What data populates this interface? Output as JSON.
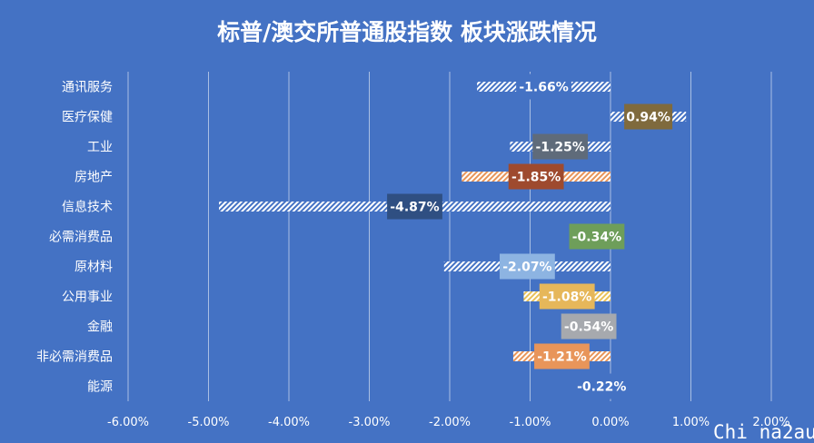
{
  "chart_data": {
    "type": "bar",
    "orientation": "horizontal",
    "title": "标普/澳交所普通股指数 板块涨跌情况",
    "categories": [
      "通讯服务",
      "医疗保健",
      "工业",
      "房地产",
      "信息技术",
      "必需消费品",
      "原材料",
      "公用事业",
      "金融",
      "非必需消费品",
      "能源"
    ],
    "values": [
      -1.66,
      0.94,
      -1.25,
      -1.85,
      -4.87,
      -0.34,
      -2.07,
      -1.08,
      -0.54,
      -1.21,
      -0.22
    ],
    "data_labels": [
      "-1.66%",
      "0.94%",
      "-1.25%",
      "-1.85%",
      "-4.87%",
      "-0.34%",
      "-2.07%",
      "-1.08%",
      "-0.54%",
      "-1.21%",
      "-0.22%"
    ],
    "label_colors": [
      "#4472C4",
      "#7F6A3D",
      "#5F6B7A",
      "#9E4A2E",
      "#2F4F82",
      "#6E9E5A",
      "#8DB4E2",
      "#E6B75A",
      "#A6A9AE",
      "#E8955A",
      "#4472C4"
    ],
    "bar_colors": [
      "#ffffff",
      "#ffffff",
      "#ffffff",
      "#E8955A",
      "#ffffff",
      "#ffffff",
      "#ffffff",
      "#E8C15A",
      "#ffffff",
      "#E8955A",
      "#ffffff"
    ],
    "xlim": [
      -6,
      2
    ],
    "xticks": [
      -6,
      -5,
      -4,
      -3,
      -2,
      -1,
      0,
      1,
      2
    ],
    "xtick_labels": [
      "-6.00%",
      "-5.00%",
      "-4.00%",
      "-3.00%",
      "-2.00%",
      "-1.00%",
      "0.00%",
      "1.00%",
      "2.00%"
    ],
    "grid": true,
    "legend": "none",
    "background": "#4472C4"
  },
  "watermark": "Chi na2au"
}
